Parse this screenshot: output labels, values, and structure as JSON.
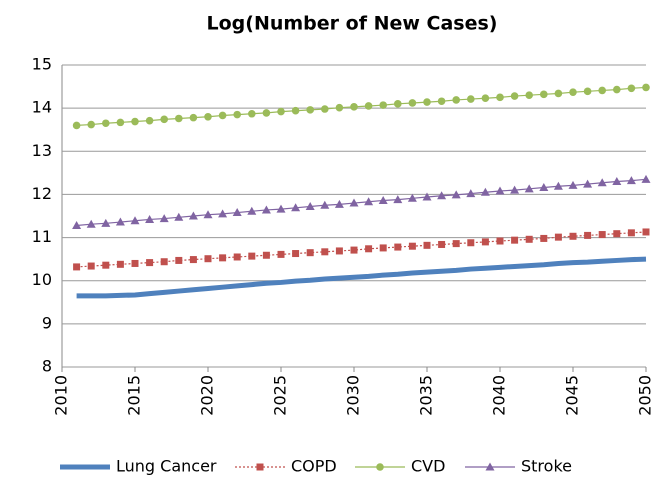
{
  "chart_data": {
    "type": "line",
    "title": "Log(Number of New Cases)",
    "x": [
      2011,
      2012,
      2013,
      2014,
      2015,
      2016,
      2017,
      2018,
      2019,
      2020,
      2021,
      2022,
      2023,
      2024,
      2025,
      2026,
      2027,
      2028,
      2029,
      2030,
      2031,
      2032,
      2033,
      2034,
      2035,
      2036,
      2037,
      2038,
      2039,
      2040,
      2041,
      2042,
      2043,
      2044,
      2045,
      2046,
      2047,
      2048,
      2049,
      2050
    ],
    "series": [
      {
        "name": "Lung Cancer",
        "color": "#4f81bd",
        "marker": null,
        "line_style": "solid",
        "values": [
          9.65,
          9.65,
          9.65,
          9.66,
          9.67,
          9.7,
          9.73,
          9.76,
          9.79,
          9.82,
          9.85,
          9.88,
          9.91,
          9.94,
          9.96,
          9.99,
          10.01,
          10.04,
          10.06,
          10.08,
          10.1,
          10.13,
          10.15,
          10.18,
          10.2,
          10.22,
          10.24,
          10.27,
          10.29,
          10.31,
          10.33,
          10.35,
          10.37,
          10.4,
          10.42,
          10.43,
          10.45,
          10.47,
          10.49,
          10.5
        ]
      },
      {
        "name": "COPD",
        "color": "#c0504d",
        "marker": "square",
        "line_style": "dotted",
        "values": [
          10.32,
          10.34,
          10.36,
          10.38,
          10.4,
          10.42,
          10.44,
          10.47,
          10.49,
          10.51,
          10.53,
          10.55,
          10.57,
          10.59,
          10.61,
          10.63,
          10.65,
          10.67,
          10.69,
          10.71,
          10.74,
          10.76,
          10.78,
          10.8,
          10.82,
          10.84,
          10.86,
          10.88,
          10.9,
          10.92,
          10.94,
          10.96,
          10.98,
          11.01,
          11.03,
          11.05,
          11.07,
          11.09,
          11.11,
          11.13
        ]
      },
      {
        "name": "CVD",
        "color": "#9bbb59",
        "marker": "circle",
        "line_style": "solid",
        "values": [
          13.6,
          13.62,
          13.65,
          13.67,
          13.69,
          13.71,
          13.74,
          13.76,
          13.78,
          13.8,
          13.83,
          13.85,
          13.87,
          13.89,
          13.92,
          13.94,
          13.96,
          13.98,
          14.01,
          14.03,
          14.05,
          14.07,
          14.1,
          14.12,
          14.14,
          14.16,
          14.19,
          14.21,
          14.23,
          14.25,
          14.28,
          14.3,
          14.32,
          14.34,
          14.37,
          14.39,
          14.41,
          14.43,
          14.46,
          14.48
        ]
      },
      {
        "name": "Stroke",
        "color": "#8064a2",
        "marker": "triangle",
        "line_style": "solid",
        "values": [
          11.28,
          11.31,
          11.33,
          11.36,
          11.39,
          11.42,
          11.44,
          11.47,
          11.5,
          11.53,
          11.55,
          11.58,
          11.61,
          11.64,
          11.66,
          11.69,
          11.72,
          11.75,
          11.77,
          11.8,
          11.83,
          11.86,
          11.88,
          11.91,
          11.94,
          11.97,
          11.99,
          12.02,
          12.05,
          12.08,
          12.1,
          12.13,
          12.16,
          12.19,
          12.21,
          12.24,
          12.27,
          12.3,
          12.32,
          12.35
        ]
      }
    ],
    "xlim": [
      2010,
      2050
    ],
    "xticks": [
      2010,
      2015,
      2020,
      2025,
      2030,
      2035,
      2040,
      2045,
      2050
    ],
    "ylim": [
      8,
      15
    ],
    "yticks": [
      8,
      9,
      10,
      11,
      12,
      13,
      14,
      15
    ],
    "grid": true,
    "legend": "bottom"
  }
}
